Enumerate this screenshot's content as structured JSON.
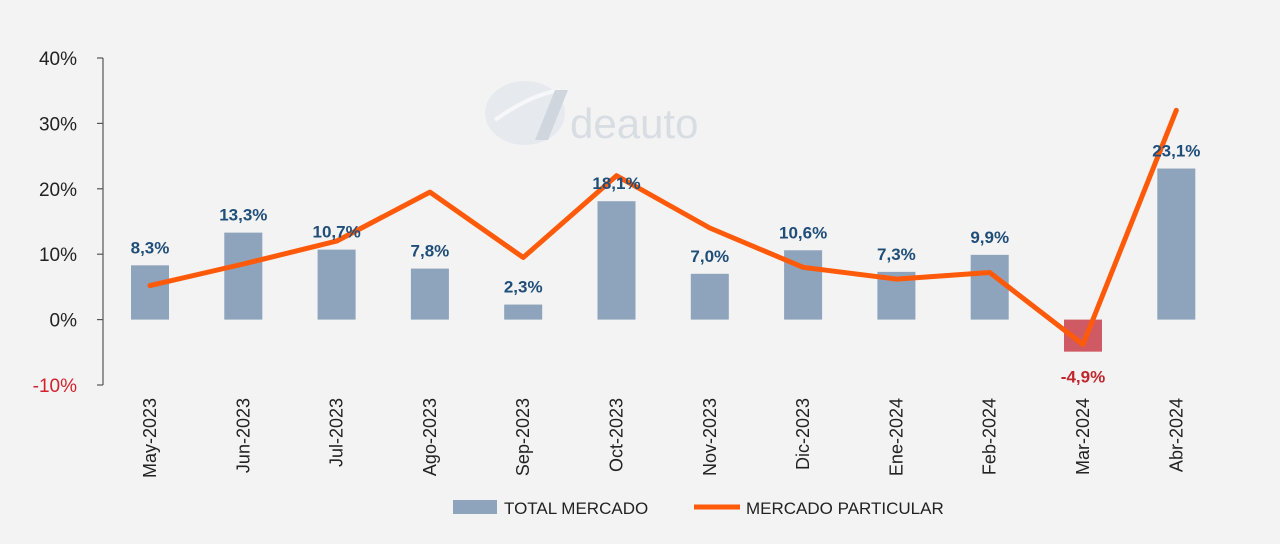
{
  "chart_data": {
    "type": "bar",
    "categories": [
      "May-2023",
      "Jun-2023",
      "Jul-2023",
      "Ago-2023",
      "Sep-2023",
      "Oct-2023",
      "Nov-2023",
      "Dic-2023",
      "Ene-2024",
      "Feb-2024",
      "Mar-2024",
      "Abr-2024"
    ],
    "series": [
      {
        "name": "TOTAL MERCADO",
        "type": "bar",
        "values": [
          8.3,
          13.3,
          10.7,
          7.8,
          2.3,
          18.1,
          7.0,
          10.6,
          7.3,
          9.9,
          -4.9,
          23.1
        ],
        "labels": [
          "8,3%",
          "13,3%",
          "10,7%",
          "7,8%",
          "2,3%",
          "18,1%",
          "7,0%",
          "10,6%",
          "7,3%",
          "9,9%",
          "-4,9%",
          "23,1%"
        ],
        "color": "#8ea3bc",
        "negative_color": "#cf5a63"
      },
      {
        "name": "MERCADO PARTICULAR",
        "type": "line",
        "values": [
          5.2,
          8.5,
          12.0,
          19.5,
          9.5,
          22.0,
          14.0,
          8.0,
          6.2,
          7.2,
          -3.8,
          32.0
        ],
        "color": "#ff5a0a"
      }
    ],
    "yticks": [
      40,
      30,
      20,
      10,
      0,
      -10
    ],
    "ytick_labels": [
      "40%",
      "30%",
      "20%",
      "10%",
      "0%",
      "-10%"
    ],
    "ylim": [
      -10,
      40
    ],
    "title": "",
    "xlabel": "",
    "ylabel": "",
    "grid": false,
    "legend_position": "bottom"
  },
  "watermark": {
    "text": "deauto"
  }
}
